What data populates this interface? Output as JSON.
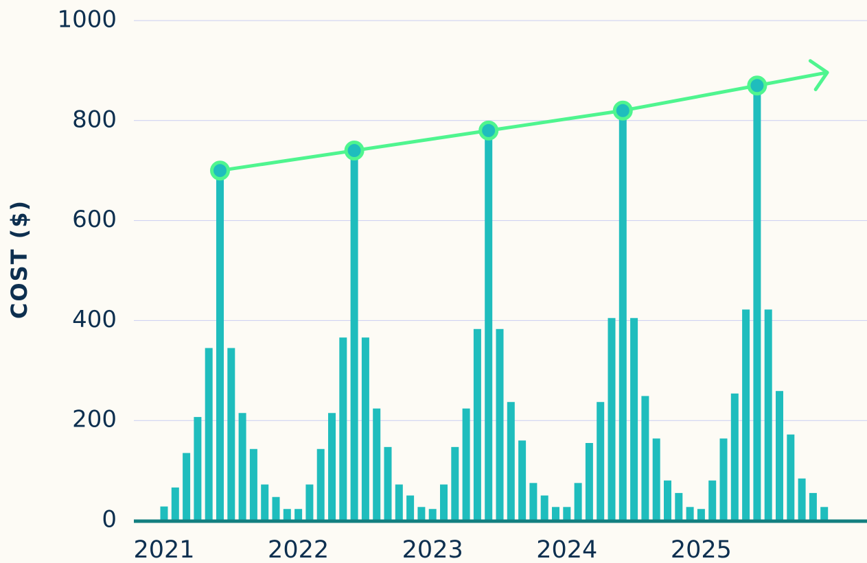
{
  "chart_data": {
    "type": "bar",
    "ylabel": "COST ($)",
    "categories": [
      "2021",
      null,
      null,
      null,
      null,
      null,
      null,
      null,
      null,
      null,
      null,
      null,
      "2022",
      null,
      null,
      null,
      null,
      null,
      null,
      null,
      null,
      null,
      null,
      null,
      "2023",
      null,
      null,
      null,
      null,
      null,
      null,
      null,
      null,
      null,
      null,
      null,
      "2024",
      null,
      null,
      null,
      null,
      null,
      null,
      null,
      null,
      null,
      null,
      null,
      "2025",
      null,
      null,
      null,
      null,
      null,
      null,
      null,
      null,
      null,
      null,
      null
    ],
    "values": [
      28,
      66,
      135,
      207,
      345,
      700,
      345,
      215,
      143,
      72,
      47,
      23,
      23,
      72,
      143,
      215,
      366,
      740,
      366,
      224,
      147,
      72,
      50,
      27,
      23,
      72,
      147,
      224,
      383,
      780,
      383,
      237,
      160,
      75,
      50,
      27,
      27,
      75,
      155,
      237,
      405,
      820,
      405,
      249,
      164,
      80,
      55,
      27,
      23,
      80,
      164,
      254,
      422,
      870,
      422,
      259,
      172,
      84,
      55,
      27
    ],
    "color": "#1fbdbd",
    "ylim": [
      0,
      1000
    ],
    "yticks": [
      0,
      200,
      400,
      600,
      800,
      1000
    ],
    "grid": true,
    "trend_line": true,
    "trend_color": "#4ff58f",
    "baseline_color": "#137f80"
  }
}
